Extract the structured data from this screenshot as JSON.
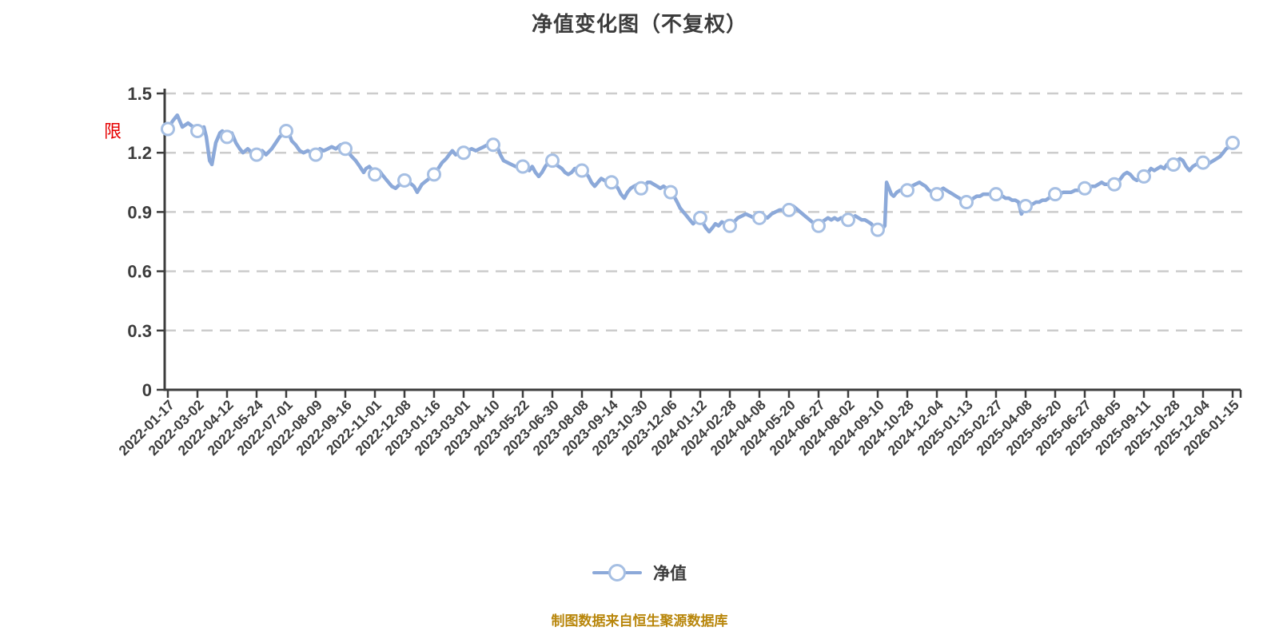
{
  "title": "净值变化图（不复权）",
  "annotation": {
    "text": "限",
    "color": "#e60000"
  },
  "legend": {
    "label": "净值"
  },
  "source_note": "制图数据来自恒生聚源数据库",
  "colors": {
    "line": "#8CA9D9",
    "marker_stroke": "#A6BFE3",
    "marker_fill": "#ffffff",
    "gridline": "#cccccc",
    "axis": "#3d3d3d",
    "tick_label": "#3d3d3d"
  },
  "chart_data": {
    "type": "line",
    "title": "净值变化图（不复权）",
    "series_name": "净值",
    "legend_position": "bottom",
    "grid": "horizontal dashed",
    "ylim": [
      0,
      1.5
    ],
    "y_ticks": [
      0,
      0.3,
      0.6,
      0.9,
      1.2,
      1.5
    ],
    "categories": [
      "2022-01-17",
      "2022-03-02",
      "2022-04-12",
      "2022-05-24",
      "2022-07-01",
      "2022-08-09",
      "2022-09-16",
      "2022-11-01",
      "2022-12-08",
      "2023-01-16",
      "2023-03-01",
      "2023-04-10",
      "2023-05-22",
      "2023-06-30",
      "2023-08-08",
      "2023-09-14",
      "2023-10-30",
      "2023-12-06",
      "2024-01-12",
      "2024-02-28",
      "2024-04-08",
      "2024-05-20",
      "2024-06-27",
      "2024-08-02",
      "2024-09-10",
      "2024-10-28",
      "2024-12-04",
      "2025-01-13",
      "2025-02-27",
      "2025-04-08",
      "2025-05-20",
      "2025-06-27",
      "2025-08-05",
      "2025-09-11",
      "2025-10-28",
      "2025-12-04",
      "2026-01-15"
    ],
    "values": [
      1.32,
      1.31,
      1.28,
      1.19,
      1.31,
      1.19,
      1.22,
      1.09,
      1.06,
      1.09,
      1.2,
      1.24,
      1.13,
      1.16,
      1.11,
      1.05,
      1.02,
      1.0,
      0.87,
      0.83,
      0.87,
      0.91,
      0.83,
      0.86,
      0.81,
      1.01,
      0.99,
      0.95,
      0.99,
      0.93,
      0.99,
      1.02,
      1.04,
      1.08,
      1.14,
      1.15,
      1.25
    ],
    "line_detail": [
      [
        0.0,
        1.32
      ],
      [
        0.16,
        1.36
      ],
      [
        0.32,
        1.39
      ],
      [
        0.49,
        1.33
      ],
      [
        0.68,
        1.35
      ],
      [
        0.86,
        1.33
      ],
      [
        1.0,
        1.31
      ],
      [
        1.22,
        1.33
      ],
      [
        1.3,
        1.28
      ],
      [
        1.41,
        1.16
      ],
      [
        1.49,
        1.14
      ],
      [
        1.62,
        1.25
      ],
      [
        1.76,
        1.3
      ],
      [
        1.84,
        1.31
      ],
      [
        2.0,
        1.28
      ],
      [
        2.16,
        1.3
      ],
      [
        2.3,
        1.25
      ],
      [
        2.43,
        1.22
      ],
      [
        2.54,
        1.2
      ],
      [
        2.7,
        1.22
      ],
      [
        2.84,
        1.2
      ],
      [
        3.0,
        1.19
      ],
      [
        3.19,
        1.21
      ],
      [
        3.32,
        1.19
      ],
      [
        3.51,
        1.22
      ],
      [
        3.65,
        1.25
      ],
      [
        3.78,
        1.28
      ],
      [
        3.92,
        1.3
      ],
      [
        4.0,
        1.31
      ],
      [
        4.11,
        1.29
      ],
      [
        4.19,
        1.26
      ],
      [
        4.32,
        1.24
      ],
      [
        4.46,
        1.21
      ],
      [
        4.59,
        1.2
      ],
      [
        4.73,
        1.21
      ],
      [
        4.86,
        1.2
      ],
      [
        5.0,
        1.19
      ],
      [
        5.14,
        1.22
      ],
      [
        5.27,
        1.21
      ],
      [
        5.41,
        1.22
      ],
      [
        5.54,
        1.23
      ],
      [
        5.68,
        1.22
      ],
      [
        5.84,
        1.24
      ],
      [
        5.95,
        1.23
      ],
      [
        6.0,
        1.22
      ],
      [
        6.11,
        1.2
      ],
      [
        6.22,
        1.18
      ],
      [
        6.35,
        1.16
      ],
      [
        6.49,
        1.13
      ],
      [
        6.62,
        1.1
      ],
      [
        6.7,
        1.12
      ],
      [
        6.81,
        1.13
      ],
      [
        6.92,
        1.11
      ],
      [
        7.0,
        1.09
      ],
      [
        7.14,
        1.11
      ],
      [
        7.24,
        1.09
      ],
      [
        7.35,
        1.07
      ],
      [
        7.46,
        1.05
      ],
      [
        7.57,
        1.03
      ],
      [
        7.7,
        1.02
      ],
      [
        7.84,
        1.04
      ],
      [
        8.0,
        1.06
      ],
      [
        8.16,
        1.05
      ],
      [
        8.32,
        1.03
      ],
      [
        8.43,
        1.0
      ],
      [
        8.59,
        1.04
      ],
      [
        8.76,
        1.06
      ],
      [
        8.92,
        1.08
      ],
      [
        9.0,
        1.09
      ],
      [
        9.14,
        1.12
      ],
      [
        9.27,
        1.15
      ],
      [
        9.41,
        1.17
      ],
      [
        9.51,
        1.19
      ],
      [
        9.62,
        1.21
      ],
      [
        9.73,
        1.19
      ],
      [
        9.86,
        1.2
      ],
      [
        10.0,
        1.2
      ],
      [
        10.14,
        1.21
      ],
      [
        10.27,
        1.22
      ],
      [
        10.41,
        1.21
      ],
      [
        10.54,
        1.22
      ],
      [
        10.68,
        1.23
      ],
      [
        10.81,
        1.24
      ],
      [
        10.92,
        1.25
      ],
      [
        11.0,
        1.24
      ],
      [
        11.14,
        1.23
      ],
      [
        11.24,
        1.19
      ],
      [
        11.35,
        1.16
      ],
      [
        11.49,
        1.15
      ],
      [
        11.62,
        1.14
      ],
      [
        11.76,
        1.13
      ],
      [
        11.89,
        1.13
      ],
      [
        12.0,
        1.13
      ],
      [
        12.11,
        1.12
      ],
      [
        12.22,
        1.11
      ],
      [
        12.32,
        1.13
      ],
      [
        12.43,
        1.1
      ],
      [
        12.54,
        1.08
      ],
      [
        12.65,
        1.1
      ],
      [
        12.76,
        1.13
      ],
      [
        12.86,
        1.15
      ],
      [
        13.0,
        1.16
      ],
      [
        13.11,
        1.14
      ],
      [
        13.22,
        1.13
      ],
      [
        13.32,
        1.12
      ],
      [
        13.43,
        1.1
      ],
      [
        13.54,
        1.09
      ],
      [
        13.65,
        1.1
      ],
      [
        13.76,
        1.12
      ],
      [
        13.86,
        1.12
      ],
      [
        14.0,
        1.11
      ],
      [
        14.11,
        1.1
      ],
      [
        14.22,
        1.08
      ],
      [
        14.32,
        1.05
      ],
      [
        14.43,
        1.03
      ],
      [
        14.54,
        1.05
      ],
      [
        14.65,
        1.07
      ],
      [
        14.76,
        1.06
      ],
      [
        14.86,
        1.05
      ],
      [
        15.0,
        1.05
      ],
      [
        15.11,
        1.04
      ],
      [
        15.22,
        1.02
      ],
      [
        15.32,
        0.99
      ],
      [
        15.43,
        0.97
      ],
      [
        15.54,
        1.0
      ],
      [
        15.65,
        1.02
      ],
      [
        15.76,
        1.03
      ],
      [
        15.89,
        1.04
      ],
      [
        16.0,
        1.02
      ],
      [
        16.11,
        1.03
      ],
      [
        16.22,
        1.05
      ],
      [
        16.32,
        1.05
      ],
      [
        16.43,
        1.04
      ],
      [
        16.54,
        1.03
      ],
      [
        16.65,
        1.02
      ],
      [
        16.76,
        1.03
      ],
      [
        16.86,
        1.02
      ],
      [
        17.0,
        1.0
      ],
      [
        17.11,
        0.98
      ],
      [
        17.22,
        0.95
      ],
      [
        17.32,
        0.92
      ],
      [
        17.43,
        0.9
      ],
      [
        17.54,
        0.88
      ],
      [
        17.65,
        0.86
      ],
      [
        17.76,
        0.84
      ],
      [
        17.89,
        0.86
      ],
      [
        18.0,
        0.87
      ],
      [
        18.11,
        0.84
      ],
      [
        18.19,
        0.82
      ],
      [
        18.3,
        0.8
      ],
      [
        18.41,
        0.82
      ],
      [
        18.51,
        0.84
      ],
      [
        18.62,
        0.83
      ],
      [
        18.73,
        0.85
      ],
      [
        18.84,
        0.84
      ],
      [
        19.0,
        0.83
      ],
      [
        19.14,
        0.85
      ],
      [
        19.27,
        0.87
      ],
      [
        19.41,
        0.88
      ],
      [
        19.54,
        0.89
      ],
      [
        19.68,
        0.88
      ],
      [
        19.81,
        0.87
      ],
      [
        19.92,
        0.86
      ],
      [
        20.0,
        0.87
      ],
      [
        20.14,
        0.88
      ],
      [
        20.27,
        0.87
      ],
      [
        20.41,
        0.89
      ],
      [
        20.54,
        0.9
      ],
      [
        20.68,
        0.91
      ],
      [
        20.84,
        0.91
      ],
      [
        21.0,
        0.91
      ],
      [
        21.14,
        0.93
      ],
      [
        21.3,
        0.91
      ],
      [
        21.46,
        0.89
      ],
      [
        21.62,
        0.87
      ],
      [
        21.78,
        0.85
      ],
      [
        21.89,
        0.84
      ],
      [
        22.0,
        0.83
      ],
      [
        22.11,
        0.85
      ],
      [
        22.22,
        0.86
      ],
      [
        22.32,
        0.87
      ],
      [
        22.43,
        0.86
      ],
      [
        22.54,
        0.87
      ],
      [
        22.65,
        0.86
      ],
      [
        22.76,
        0.87
      ],
      [
        22.86,
        0.86
      ],
      [
        23.0,
        0.86
      ],
      [
        23.14,
        0.87
      ],
      [
        23.24,
        0.88
      ],
      [
        23.35,
        0.87
      ],
      [
        23.46,
        0.86
      ],
      [
        23.57,
        0.86
      ],
      [
        23.68,
        0.85
      ],
      [
        23.78,
        0.84
      ],
      [
        23.89,
        0.82
      ],
      [
        24.0,
        0.81
      ],
      [
        24.11,
        0.82
      ],
      [
        24.19,
        0.82
      ],
      [
        24.24,
        0.83
      ],
      [
        24.3,
        1.05
      ],
      [
        24.38,
        1.02
      ],
      [
        24.46,
        0.99
      ],
      [
        24.54,
        0.98
      ],
      [
        24.65,
        1.0
      ],
      [
        24.76,
        1.01
      ],
      [
        24.89,
        1.01
      ],
      [
        25.0,
        1.01
      ],
      [
        25.14,
        1.03
      ],
      [
        25.27,
        1.04
      ],
      [
        25.41,
        1.05
      ],
      [
        25.51,
        1.04
      ],
      [
        25.62,
        1.03
      ],
      [
        25.73,
        1.01
      ],
      [
        25.84,
        1.0
      ],
      [
        26.0,
        0.99
      ],
      [
        26.11,
        1.01
      ],
      [
        26.22,
        1.02
      ],
      [
        26.32,
        1.01
      ],
      [
        26.43,
        1.0
      ],
      [
        26.54,
        0.99
      ],
      [
        26.65,
        0.98
      ],
      [
        26.76,
        0.97
      ],
      [
        26.86,
        0.96
      ],
      [
        27.0,
        0.95
      ],
      [
        27.14,
        0.96
      ],
      [
        27.24,
        0.97
      ],
      [
        27.35,
        0.98
      ],
      [
        27.46,
        0.98
      ],
      [
        27.57,
        0.99
      ],
      [
        27.7,
        0.99
      ],
      [
        27.84,
        0.99
      ],
      [
        28.0,
        0.99
      ],
      [
        28.11,
        0.98
      ],
      [
        28.22,
        0.98
      ],
      [
        28.32,
        0.97
      ],
      [
        28.43,
        0.97
      ],
      [
        28.54,
        0.96
      ],
      [
        28.65,
        0.96
      ],
      [
        28.76,
        0.95
      ],
      [
        28.86,
        0.89
      ],
      [
        29.0,
        0.93
      ],
      [
        29.14,
        0.94
      ],
      [
        29.24,
        0.94
      ],
      [
        29.35,
        0.95
      ],
      [
        29.46,
        0.95
      ],
      [
        29.57,
        0.96
      ],
      [
        29.68,
        0.96
      ],
      [
        29.78,
        0.97
      ],
      [
        29.89,
        0.98
      ],
      [
        30.0,
        0.99
      ],
      [
        30.14,
        0.99
      ],
      [
        30.27,
        1.0
      ],
      [
        30.41,
        1.0
      ],
      [
        30.54,
        1.0
      ],
      [
        30.68,
        1.01
      ],
      [
        30.84,
        1.01
      ],
      [
        31.0,
        1.02
      ],
      [
        31.14,
        1.02
      ],
      [
        31.24,
        1.03
      ],
      [
        31.35,
        1.03
      ],
      [
        31.46,
        1.04
      ],
      [
        31.57,
        1.05
      ],
      [
        31.68,
        1.04
      ],
      [
        31.78,
        1.04
      ],
      [
        31.89,
        1.05
      ],
      [
        32.0,
        1.04
      ],
      [
        32.11,
        1.05
      ],
      [
        32.22,
        1.07
      ],
      [
        32.32,
        1.09
      ],
      [
        32.43,
        1.1
      ],
      [
        32.54,
        1.09
      ],
      [
        32.65,
        1.07
      ],
      [
        32.76,
        1.06
      ],
      [
        32.86,
        1.07
      ],
      [
        33.0,
        1.08
      ],
      [
        33.14,
        1.1
      ],
      [
        33.24,
        1.12
      ],
      [
        33.35,
        1.11
      ],
      [
        33.46,
        1.12
      ],
      [
        33.57,
        1.13
      ],
      [
        33.68,
        1.12
      ],
      [
        33.78,
        1.14
      ],
      [
        33.89,
        1.15
      ],
      [
        34.0,
        1.14
      ],
      [
        34.11,
        1.16
      ],
      [
        34.22,
        1.17
      ],
      [
        34.32,
        1.16
      ],
      [
        34.43,
        1.13
      ],
      [
        34.54,
        1.11
      ],
      [
        34.65,
        1.13
      ],
      [
        34.76,
        1.14
      ],
      [
        34.89,
        1.15
      ],
      [
        35.0,
        1.15
      ],
      [
        35.14,
        1.14
      ],
      [
        35.24,
        1.15
      ],
      [
        35.35,
        1.16
      ],
      [
        35.46,
        1.17
      ],
      [
        35.57,
        1.18
      ],
      [
        35.68,
        1.2
      ],
      [
        35.78,
        1.22
      ],
      [
        35.89,
        1.23
      ],
      [
        36.0,
        1.25
      ]
    ]
  }
}
